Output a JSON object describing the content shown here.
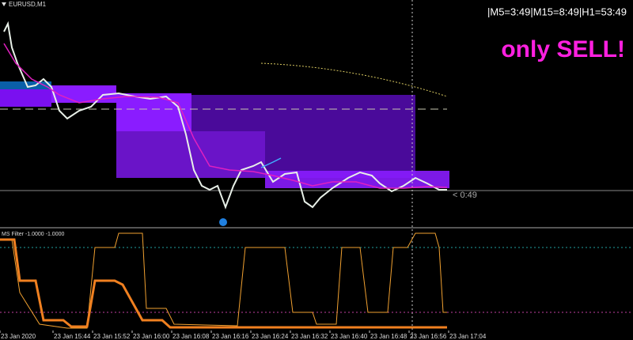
{
  "window": {
    "symbol": "EURUSD,M1",
    "timer": "|M5=3:49|M15=8:49|H1=53:49",
    "signal": "only SELL!",
    "price_label": "< 0:49",
    "indicator": "MS Filter -1.0000 -1.0000",
    "time_labels": [
      "23 Jan 2020",
      "23 Jan 15:44",
      "23 Jan 15:52",
      "23 Jan 16:00",
      "23 Jan 16:08",
      "23 Jan 16:16",
      "23 Jan 16:24",
      "23 Jan 16:32",
      "23 Jan 16:40",
      "23 Jan 16:48",
      "23 Jan 16:56",
      "23 Jan 17:04"
    ]
  }
}
